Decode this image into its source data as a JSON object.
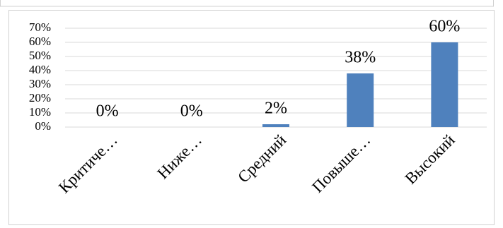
{
  "chart_data": {
    "type": "bar",
    "categories": [
      "Критиче…",
      "Ниже…",
      "Средний",
      "Повыше…",
      "Высокий"
    ],
    "values": [
      0,
      0,
      2,
      38,
      60
    ],
    "value_labels": [
      "0%",
      "0%",
      "2%",
      "38%",
      "60%"
    ],
    "color": "#4f81bd",
    "ylim": [
      0,
      70
    ],
    "yticks": [
      {
        "value": 0,
        "label": "0%"
      },
      {
        "value": 10,
        "label": "10%"
      },
      {
        "value": 20,
        "label": "20%"
      },
      {
        "value": 30,
        "label": "30%"
      },
      {
        "value": 40,
        "label": "40%"
      },
      {
        "value": 50,
        "label": "50%"
      },
      {
        "value": 60,
        "label": "60%"
      },
      {
        "value": 70,
        "label": "70%"
      }
    ],
    "grid": true
  }
}
